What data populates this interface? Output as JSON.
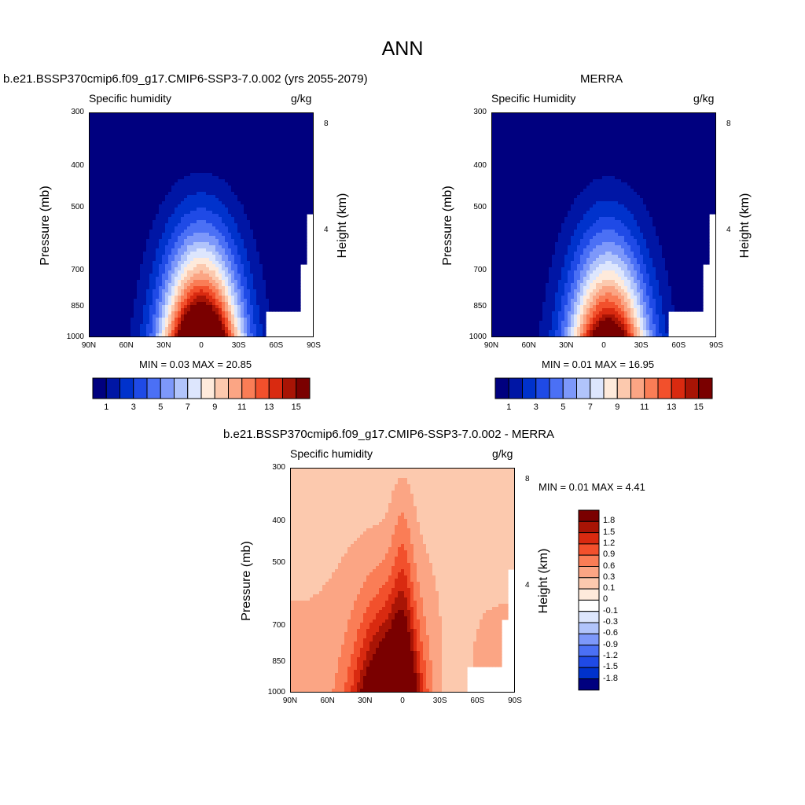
{
  "figure_title": "ANN",
  "panels": [
    {
      "title": "b.e21.BSSP370cmip6.f09_g17.CMIP6-SSP3-7.0.002 (yrs 2055-2079)",
      "left_label": "Specific humidity",
      "right_label": "g/kg",
      "ylabel": "Pressure (mb)",
      "ylabel_right": "Height (km)",
      "stats": "MIN =   0.03  MAX =  20.85"
    },
    {
      "title": "MERRA",
      "left_label": "Specific Humidity",
      "right_label": "g/kg",
      "ylabel": "Pressure (mb)",
      "ylabel_right": "Height (km)",
      "stats": "MIN =   0.01  MAX =  16.95"
    },
    {
      "title": "b.e21.BSSP370cmip6.f09_g17.CMIP6-SSP3-7.0.002 - MERRA",
      "left_label": "Specific humidity",
      "right_label": "g/kg",
      "ylabel": "Pressure (mb)",
      "ylabel_right": "Height (km)",
      "stats": "MIN =   0.01  MAX =   4.41"
    }
  ],
  "axes": {
    "x_ticks": [
      "90N",
      "60N",
      "30N",
      "0",
      "30S",
      "60S",
      "90S"
    ],
    "y_ticks": [
      "300",
      "400",
      "500",
      "700",
      "850",
      "1000"
    ],
    "y_values": [
      300,
      400,
      500,
      700,
      850,
      1000
    ],
    "height_ticks": [
      "8",
      "4"
    ],
    "height_values": [
      8,
      4
    ]
  },
  "colorbar_main": {
    "labels": [
      "1",
      "3",
      "5",
      "7",
      "9",
      "11",
      "13",
      "15"
    ],
    "colors": [
      "#00007f",
      "#0016a5",
      "#0032cc",
      "#1f4ae6",
      "#4b70f5",
      "#7d98fa",
      "#b1c4fb",
      "#dde6fd",
      "#feeadb",
      "#fcc9ae",
      "#fba584",
      "#fa7d56",
      "#f2502c",
      "#d92a10",
      "#a81405",
      "#7a0000"
    ]
  },
  "colorbar_diff": {
    "labels": [
      "1.8",
      "1.5",
      "1.2",
      "0.9",
      "0.6",
      "0.3",
      "0.1",
      "0",
      "-0.1",
      "-0.3",
      "-0.6",
      "-0.9",
      "-1.2",
      "-1.5",
      "-1.8"
    ],
    "colors": [
      "#7a0000",
      "#a81405",
      "#d92a10",
      "#f2502c",
      "#fa7d56",
      "#fba584",
      "#fcc9ae",
      "#feeadb",
      "#ffffff",
      "#dde6fd",
      "#b1c4fb",
      "#7d98fa",
      "#4b70f5",
      "#1f4ae6",
      "#0032cc",
      "#00007f"
    ]
  },
  "chart_data": [
    {
      "type": "heatmap",
      "title": "b.e21.BSSP370cmip6.f09_g17.CMIP6-SSP3-7.0.002 (yrs 2055-2079)",
      "variable": "Specific humidity",
      "units": "g/kg",
      "xlabel": "",
      "ylabel": "Pressure (mb)",
      "ylabel_right": "Height (km)",
      "x_ticks": [
        "90N",
        "60N",
        "30N",
        "0",
        "30S",
        "60S",
        "90S"
      ],
      "ylim": [
        1000,
        300
      ],
      "contour_levels": [
        1,
        2,
        3,
        4,
        5,
        6,
        7,
        8,
        9,
        10,
        11,
        12,
        13,
        14,
        15
      ],
      "min": 0.03,
      "max": 20.85
    },
    {
      "type": "heatmap",
      "title": "MERRA",
      "variable": "Specific Humidity",
      "units": "g/kg",
      "xlabel": "",
      "ylabel": "Pressure (mb)",
      "ylabel_right": "Height (km)",
      "x_ticks": [
        "90N",
        "60N",
        "30N",
        "0",
        "30S",
        "60S",
        "90S"
      ],
      "ylim": [
        1000,
        300
      ],
      "contour_levels": [
        1,
        2,
        3,
        4,
        5,
        6,
        7,
        8,
        9,
        10,
        11,
        12,
        13,
        14,
        15
      ],
      "min": 0.01,
      "max": 16.95
    },
    {
      "type": "heatmap",
      "title": "b.e21.BSSP370cmip6.f09_g17.CMIP6-SSP3-7.0.002 - MERRA",
      "variable": "Specific humidity",
      "units": "g/kg",
      "xlabel": "",
      "ylabel": "Pressure (mb)",
      "ylabel_right": "Height (km)",
      "x_ticks": [
        "90N",
        "60N",
        "30N",
        "0",
        "30S",
        "60S",
        "90S"
      ],
      "ylim": [
        1000,
        300
      ],
      "contour_levels": [
        -1.8,
        -1.5,
        -1.2,
        -0.9,
        -0.6,
        -0.3,
        -0.1,
        0,
        0.1,
        0.3,
        0.6,
        0.9,
        1.2,
        1.5,
        1.8
      ],
      "min": 0.01,
      "max": 4.41
    }
  ]
}
